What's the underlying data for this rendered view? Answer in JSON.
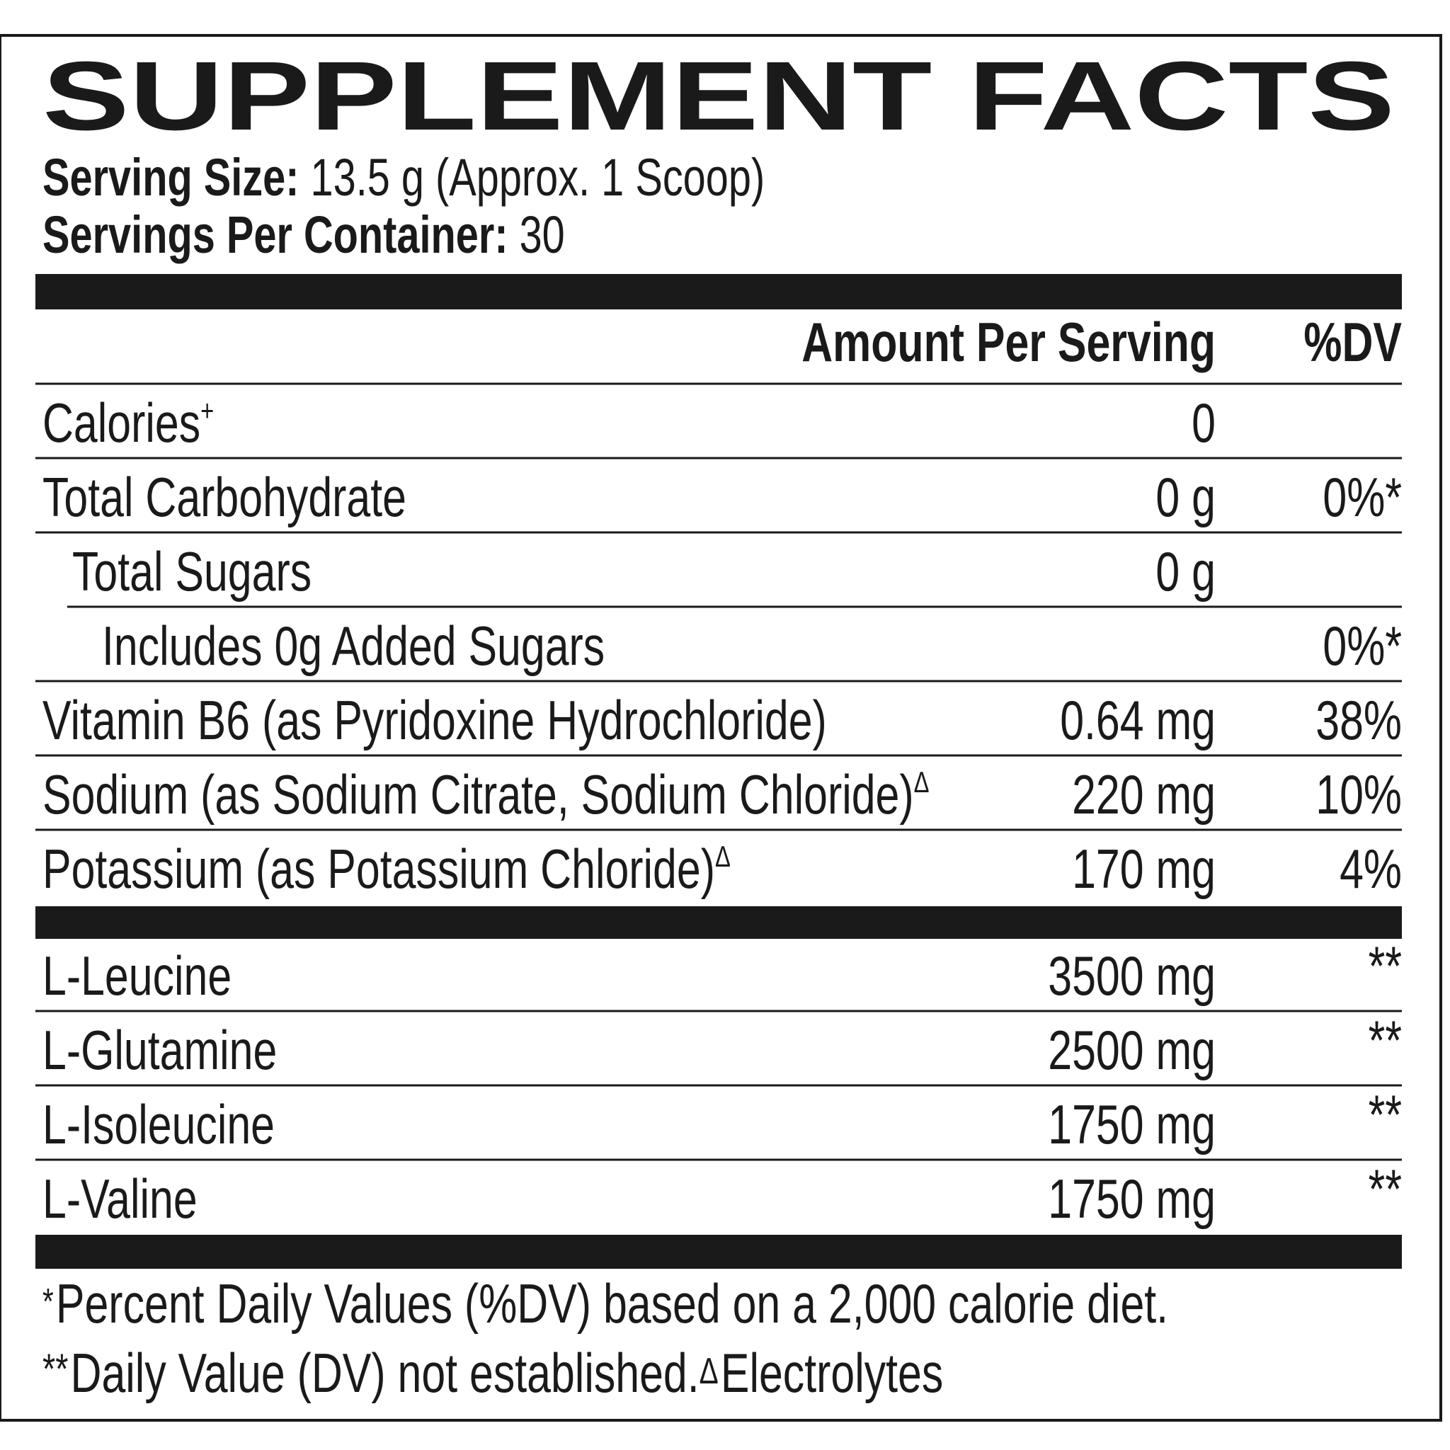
{
  "title": "SUPPLEMENT FACTS",
  "serving": [
    {
      "label": "Serving Size:",
      "value": "13.5 g (Approx. 1 Scoop)"
    },
    {
      "label": "Servings Per Container:",
      "value": "30"
    }
  ],
  "header": {
    "amount": "Amount Per Serving",
    "dv": "%DV"
  },
  "rows": [
    {
      "name": "Calories",
      "sup": "+",
      "amount": "0"
    },
    {
      "name": "Total Carbohydrate",
      "amount": "0 g",
      "dv": "0%*",
      "children": [
        {
          "name": "Total Sugars",
          "amount": "0 g",
          "children": [
            {
              "name": "Includes 0g Added Sugars",
              "dv": "0%*"
            }
          ]
        }
      ]
    },
    {
      "name": "Vitamin B6 (as Pyridoxine Hydrochloride)",
      "amount": "0.64 mg",
      "dv": "38%"
    },
    {
      "name": "Sodium (as Sodium Citrate, Sodium Chloride)",
      "sup": "Δ",
      "amount": "220 mg",
      "dv": "10%"
    },
    {
      "name": "Potassium (as Potassium Chloride)",
      "sup": "Δ",
      "amount": "170 mg",
      "dv": "4%"
    }
  ],
  "ingredients": [
    {
      "name": "L-Leucine",
      "amount": "3500 mg",
      "dv": "**"
    },
    {
      "name": "L-Glutamine",
      "amount": "2500 mg",
      "dv": "**"
    },
    {
      "name": "L-Isoleucine",
      "amount": "1750 mg",
      "dv": "**"
    },
    {
      "name": "L-Valine",
      "amount": "1750 mg",
      "dv": "**"
    }
  ],
  "footnotes": [
    [
      {
        "mark": "*",
        "text": "Percent Daily Values (%DV) based on a 2,000 calorie diet."
      }
    ],
    [
      {
        "mark": "**",
        "text": "Daily Value (DV) not established."
      },
      {
        "mark": "Δ",
        "text": "Electrolytes"
      }
    ]
  ]
}
